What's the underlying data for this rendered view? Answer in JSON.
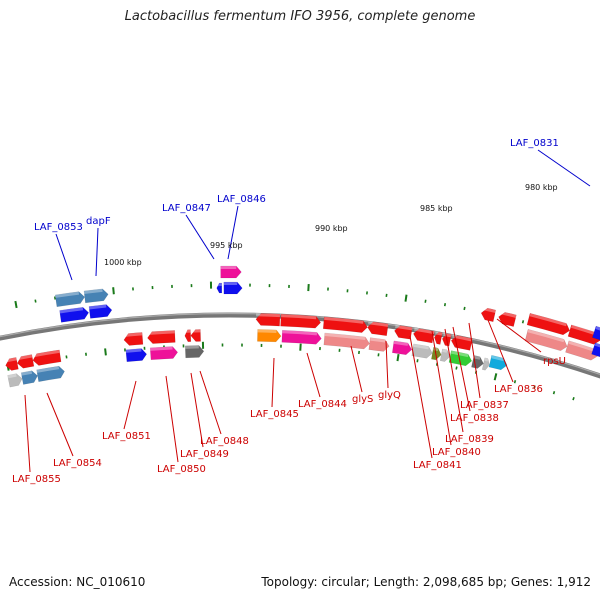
{
  "title": "Lactobacillus fermentum IFO 3956, complete genome",
  "accession": "Accession: NC_010610",
  "summary": "Topology: circular; Length: 2,098,685 bp; Genes: 1,912",
  "scale_labels": [
    "1000 kbp",
    "995 kbp",
    "990 kbp",
    "985 kbp",
    "980 kbp"
  ],
  "gene_labels_top": [
    "LAF_0853",
    "dapF",
    "LAF_0847",
    "LAF_0846",
    "LAF_0831"
  ],
  "gene_labels_bottom": [
    "LAF_0855",
    "LAF_0854",
    "LAF_0851",
    "LAF_0850",
    "LAF_0849",
    "LAF_0848",
    "LAF_0845",
    "LAF_0844",
    "glyS",
    "glyQ",
    "LAF_0841",
    "LAF_0840",
    "LAF_0839",
    "LAF_0838",
    "LAF_0837",
    "LAF_0836",
    "rpsU"
  ],
  "colors": {
    "label_top": "#0000cc",
    "label_bottom": "#cc0000",
    "backbone": "#777777",
    "tick": "#1a7a1a",
    "gene_red": "#ee1111",
    "gene_blue": "#1010ee",
    "gene_steel": "#4682b4",
    "gene_pink": "#ee1199",
    "gene_salmon": "#ee8888",
    "gene_grey": "#bbbbbb",
    "gene_dark": "#666666",
    "gene_orange": "#ff8800",
    "gene_olive": "#778822",
    "gene_green": "#33cc33",
    "gene_cyan": "#11aadd"
  }
}
